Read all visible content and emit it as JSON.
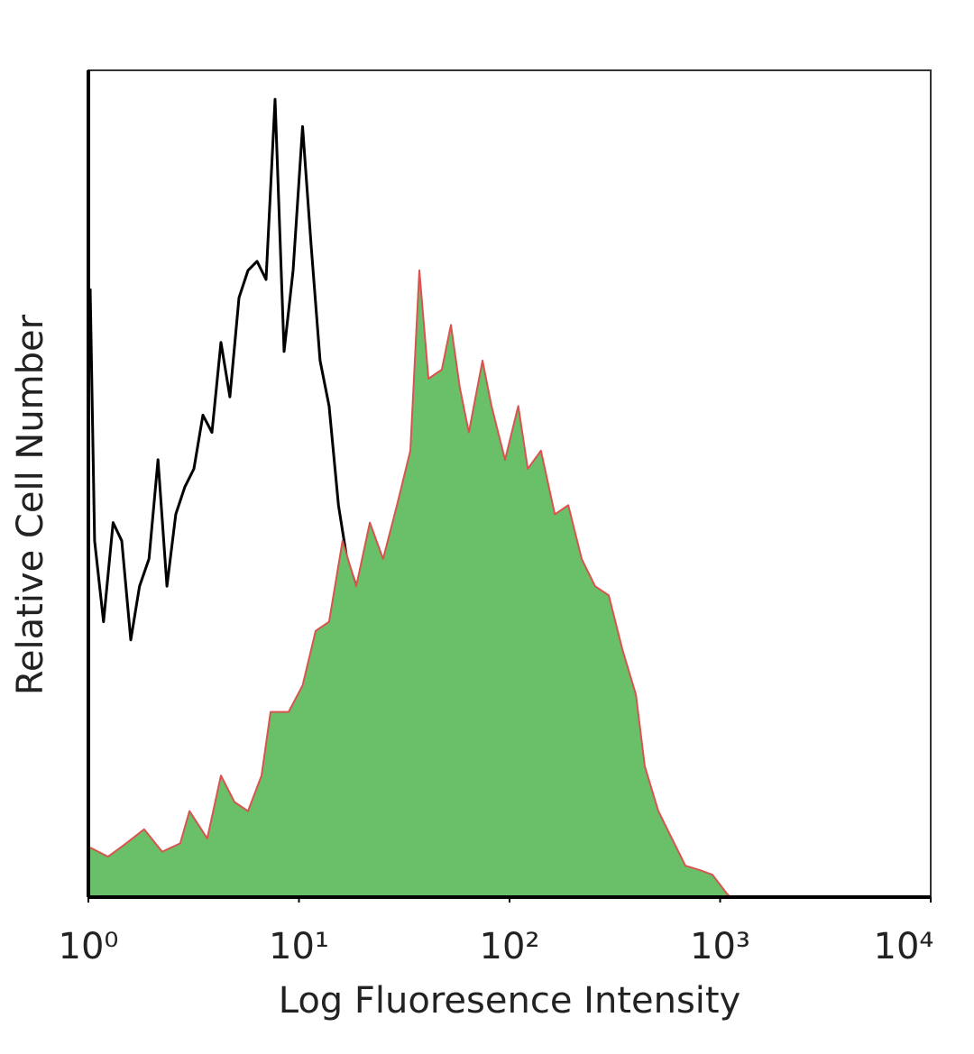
{
  "chart_data": {
    "type": "area",
    "x_label": "Log Fluoresence Intensity",
    "y_label": "Relative Cell Number",
    "log_x": true,
    "xlim": [
      1,
      10000
    ],
    "xticks": [
      {
        "value": 1,
        "label": "10⁰"
      },
      {
        "value": 10,
        "label": "10¹"
      },
      {
        "value": 100,
        "label": "10²"
      },
      {
        "value": 1000,
        "label": "10³"
      },
      {
        "value": 10000,
        "label": "10⁴"
      }
    ],
    "ylim": [
      0,
      100
    ],
    "series": [
      {
        "color": "#000000",
        "x": [
          1.02,
          1.07,
          1.18,
          1.31,
          1.44,
          1.59,
          1.75,
          1.94,
          2.14,
          2.36,
          2.6,
          2.87,
          3.17,
          3.5,
          3.86,
          4.26,
          4.7,
          5.19,
          5.73,
          6.32,
          6.98,
          7.7,
          8.5,
          9.38,
          10.4,
          11.4,
          12.6,
          13.9,
          15.4,
          16.9,
          18.7,
          20.6,
          22.8,
          25.1,
          27.8,
          30.6,
          33.8,
          37.3,
          43.2,
          50.1,
          58.1,
          70.8,
          86.3,
          95.2,
          100
        ],
        "values": [
          73.6,
          43.1,
          33.3,
          45.3,
          43.1,
          31.1,
          37.6,
          40.9,
          52.9,
          37.6,
          46.3,
          49.6,
          51.8,
          58.3,
          56.2,
          67.1,
          60.5,
          72.5,
          75.8,
          76.9,
          74.7,
          96.5,
          66.0,
          75.8,
          93.2,
          79.1,
          64.9,
          59.4,
          47.4,
          40.9,
          37.6,
          32.2,
          25.6,
          19.1,
          14.7,
          10.4,
          7.1,
          4.9,
          3.3,
          2.2,
          0.5,
          0.5,
          2.7,
          0.5,
          0
        ]
      },
      {
        "color": "#d9534f",
        "fill": "#6abf69",
        "x": [
          1.02,
          1.24,
          1.51,
          1.84,
          2.24,
          2.73,
          3.02,
          3.67,
          4.26,
          4.94,
          5.73,
          6.64,
          7.33,
          8.93,
          10.4,
          12.0,
          13.9,
          16.1,
          18.7,
          21.7,
          25.1,
          29.2,
          33.8,
          37.3,
          41.2,
          47.7,
          52.7,
          58.1,
          64.1,
          74.4,
          82.1,
          95.2,
          110,
          122,
          141,
          164,
          190,
          220,
          255,
          296,
          343,
          398,
          439,
          509,
          590,
          684,
          793,
          920,
          1070,
          1120
        ],
        "values": [
          6.0,
          4.9,
          6.5,
          8.2,
          5.5,
          6.5,
          10.4,
          7.1,
          14.7,
          11.5,
          10.4,
          14.7,
          22.4,
          22.4,
          25.6,
          32.2,
          33.3,
          43.1,
          37.6,
          45.3,
          40.9,
          47.4,
          54.0,
          75.8,
          62.7,
          63.8,
          69.2,
          61.6,
          56.2,
          64.9,
          59.4,
          52.9,
          59.4,
          51.8,
          54.0,
          46.3,
          47.4,
          40.9,
          37.6,
          36.5,
          30.0,
          24.5,
          15.8,
          10.4,
          7.1,
          3.8,
          3.3,
          2.7,
          0.5,
          0
        ]
      }
    ]
  }
}
